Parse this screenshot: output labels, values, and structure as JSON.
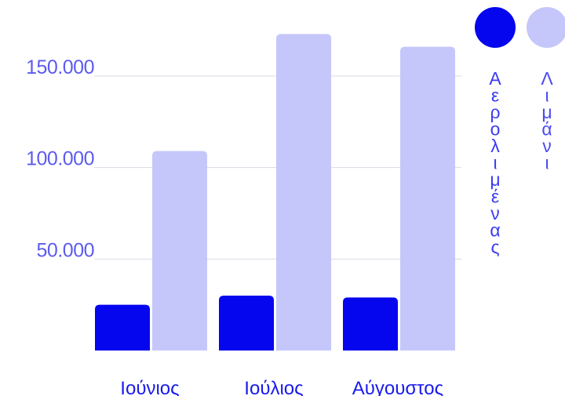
{
  "chart_data": {
    "type": "bar",
    "categories": [
      "Ιούνιος",
      "Ιούλιος",
      "Αύγουστος"
    ],
    "series": [
      {
        "name": "Αερολιμένας",
        "values": [
          25000,
          30000,
          29000
        ],
        "color": "#0505ee"
      },
      {
        "name": "Λιμάνι",
        "values": [
          109000,
          173000,
          166000
        ],
        "color": "#c5c7fb"
      }
    ],
    "yticks": [
      {
        "value": 50000,
        "label": "50.000"
      },
      {
        "value": 100000,
        "label": "100.000"
      },
      {
        "value": 150000,
        "label": "150.000"
      }
    ],
    "ylim": [
      0,
      180000
    ],
    "grid": true,
    "legend_position": "top-right",
    "tick_color": "#5b5bf0",
    "category_color": "#1a1aeb",
    "grid_color": "#d9d9e4"
  }
}
